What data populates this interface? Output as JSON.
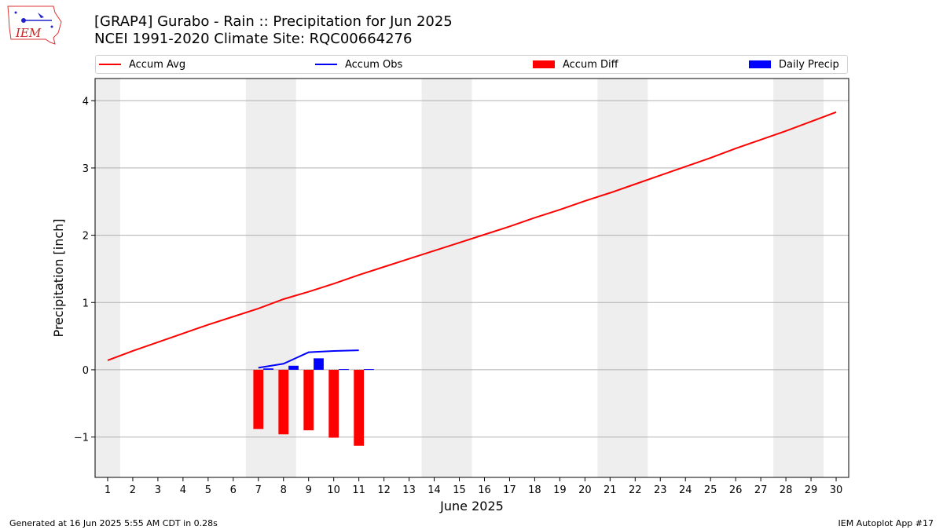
{
  "header": {
    "title_line1": "[GRAP4] Gurabo - Rain :: Precipitation for Jun 2025",
    "title_line2": "NCEI 1991-2020 Climate Site: RQC00664276",
    "logo_text": "IEM"
  },
  "legend": {
    "items": [
      {
        "label": "Accum Avg",
        "color": "#ff0000",
        "kind": "line"
      },
      {
        "label": "Accum Obs",
        "color": "#0000ff",
        "kind": "line"
      },
      {
        "label": "Accum Diff",
        "color": "#ff0000",
        "kind": "box"
      },
      {
        "label": "Daily Precip",
        "color": "#0000ff",
        "kind": "box"
      }
    ]
  },
  "footer": {
    "left": "Generated at 16 Jun 2025 5:55 AM CDT in 0.28s",
    "right": "IEM Autoplot App #17"
  },
  "chart_data": {
    "type": "bar",
    "title": "[GRAP4] Gurabo - Rain :: Precipitation for Jun 2025",
    "xlabel": "June 2025",
    "ylabel": "Precipitation [inch]",
    "xlim": [
      0.5,
      30.5
    ],
    "ylim": [
      -1.6,
      4.33
    ],
    "grid": "horizontal",
    "legend_position": "top",
    "x_ticks": [
      1,
      2,
      3,
      4,
      5,
      6,
      7,
      8,
      9,
      10,
      11,
      12,
      13,
      14,
      15,
      16,
      17,
      18,
      19,
      20,
      21,
      22,
      23,
      24,
      25,
      26,
      27,
      28,
      29,
      30
    ],
    "y_ticks": [
      -1,
      0,
      1,
      2,
      3,
      4
    ],
    "y_tick_labels": [
      "−1",
      "0",
      "1",
      "2",
      "3",
      "4"
    ],
    "weekend_bands": [
      [
        0.5,
        1.5
      ],
      [
        6.5,
        8.5
      ],
      [
        13.5,
        15.5
      ],
      [
        20.5,
        22.5
      ],
      [
        27.5,
        29.5
      ]
    ],
    "series": [
      {
        "name": "Accum Avg",
        "type": "line",
        "color": "#ff0000",
        "x": [
          1,
          2,
          3,
          4,
          5,
          6,
          7,
          8,
          9,
          10,
          11,
          12,
          13,
          14,
          15,
          16,
          17,
          18,
          19,
          20,
          21,
          22,
          23,
          24,
          25,
          26,
          27,
          28,
          29,
          30
        ],
        "values": [
          0.14,
          0.28,
          0.41,
          0.54,
          0.67,
          0.79,
          0.91,
          1.05,
          1.16,
          1.28,
          1.41,
          1.53,
          1.65,
          1.77,
          1.89,
          2.01,
          2.13,
          2.26,
          2.38,
          2.51,
          2.63,
          2.76,
          2.89,
          3.02,
          3.15,
          3.29,
          3.42,
          3.55,
          3.69,
          3.83
        ]
      },
      {
        "name": "Accum Obs",
        "type": "line",
        "color": "#0000ff",
        "x": [
          7,
          8,
          9,
          10,
          11
        ],
        "values": [
          0.03,
          0.09,
          0.26,
          0.28,
          0.29
        ]
      },
      {
        "name": "Accum Diff",
        "type": "bar",
        "color": "#ff0000",
        "x": [
          7,
          8,
          9,
          10,
          11
        ],
        "values": [
          -0.88,
          -0.96,
          -0.9,
          -1.01,
          -1.13
        ]
      },
      {
        "name": "Daily Precip",
        "type": "bar",
        "color": "#0000ff",
        "x": [
          7,
          8,
          9,
          10,
          11
        ],
        "values": [
          0.02,
          0.06,
          0.17,
          0.01,
          0.01
        ]
      }
    ]
  }
}
